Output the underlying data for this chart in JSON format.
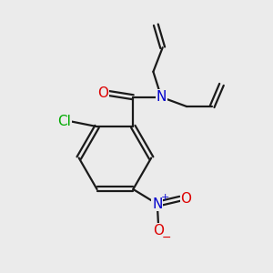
{
  "background_color": "#ebebeb",
  "bond_color": "#1a1a1a",
  "atom_colors": {
    "O": "#dd0000",
    "N": "#0000cc",
    "Cl": "#00aa00"
  },
  "font_size_atoms": 11,
  "font_size_charge": 8
}
